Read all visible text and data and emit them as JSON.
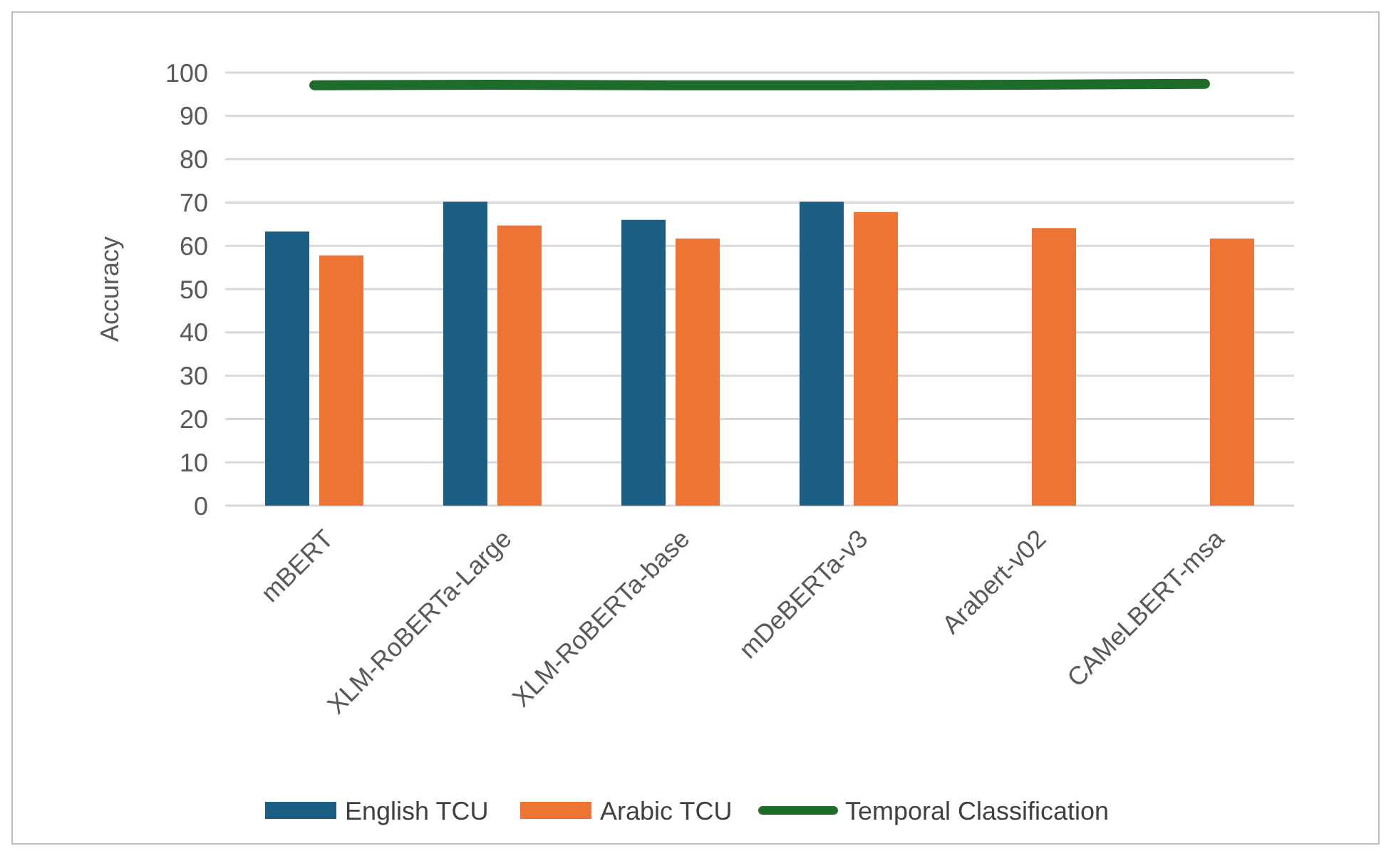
{
  "chart_data": {
    "type": "bar",
    "ylabel": "Accuracy",
    "categories": [
      "mBERT",
      "XLM-RoBERTa-Large",
      "XLM-RoBERTa-base",
      "mDeBERTa-v3",
      "Arabert-v02",
      "CAMeLBERT-msa"
    ],
    "series": [
      {
        "name": "English TCU",
        "color": "#1b5f84",
        "values": [
          63.3,
          70.2,
          66,
          70.2,
          null,
          null
        ]
      },
      {
        "name": "Arabic TCU",
        "color": "#ee7433",
        "values": [
          57.8,
          64.7,
          61.7,
          67.8,
          64.1,
          61.7
        ]
      },
      {
        "name": "Temporal Classification",
        "type": "line",
        "color": "#1e6b2a",
        "values": [
          97.1,
          97.2,
          97.1,
          97.1,
          97.2,
          97.4
        ]
      }
    ],
    "ylim": [
      0,
      100
    ],
    "yticks": [
      0,
      10,
      20,
      30,
      40,
      50,
      60,
      70,
      80,
      90,
      100
    ],
    "grid": "y",
    "legend": "bottom"
  }
}
